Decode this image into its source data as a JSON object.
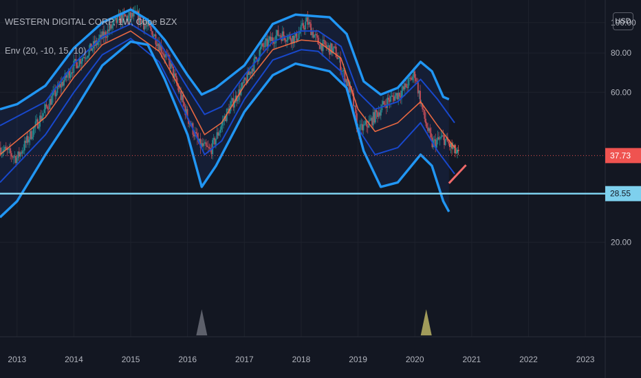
{
  "header": {
    "symbol": "WESTERN DIGITAL CORP, 1W, Cboe BZX",
    "indicator": "Env (20, -10, 15, 10)",
    "currency_button": "USD"
  },
  "colors": {
    "background": "#131722",
    "grid": "#1e222d",
    "envelope_outer": "#2196f3",
    "envelope_inner": "#1848cc",
    "ma_line": "#ff7043",
    "price_line": "#ef5350",
    "support_line": "#7ed0ee",
    "candle_up": "#26a69a",
    "candle_down": "#ef5350",
    "marker_2016": "#5d606b",
    "marker_2020": "#a19b5a"
  },
  "chart_data": {
    "type": "line",
    "x_labels": [
      "2013",
      "2014",
      "2015",
      "2016",
      "2017",
      "2018",
      "2019",
      "2020",
      "2021",
      "2022",
      "2023"
    ],
    "y_ticks": [
      100,
      80,
      60,
      20
    ],
    "y_labels": [
      "100.00",
      "80.00",
      "60.00",
      "20.00"
    ],
    "price_label": "37.73",
    "price_value": 37.73,
    "support_label": "28.55",
    "support_value": 28.55,
    "series": [
      {
        "id": "outer_upper",
        "x": [
          2012.7,
          2013.0,
          2013.5,
          2014.0,
          2014.5,
          2015.0,
          2015.3,
          2015.6,
          2016.0,
          2016.25,
          2016.5,
          2017.0,
          2017.5,
          2017.9,
          2018.2,
          2018.5,
          2018.8,
          2019.1,
          2019.4,
          2019.7,
          2020.1,
          2020.3,
          2020.5,
          2020.6
        ],
        "y": [
          53,
          55,
          63,
          83,
          100,
          110,
          102,
          88,
          68,
          59,
          62,
          73,
          99,
          106,
          105,
          104,
          92,
          65,
          59,
          62,
          75,
          70,
          58,
          57
        ]
      },
      {
        "id": "outer_lower",
        "x": [
          2012.7,
          2013.0,
          2013.5,
          2014.0,
          2014.5,
          2015.0,
          2015.3,
          2015.6,
          2016.0,
          2016.25,
          2016.5,
          2017.0,
          2017.5,
          2017.9,
          2018.2,
          2018.5,
          2018.8,
          2019.1,
          2019.4,
          2019.7,
          2020.1,
          2020.3,
          2020.5,
          2020.6
        ],
        "y": [
          24,
          27,
          38,
          52,
          73,
          87,
          85,
          66,
          44,
          30,
          35,
          52,
          68,
          74,
          72,
          70,
          62,
          39,
          30,
          31,
          38,
          35,
          27,
          25
        ]
      },
      {
        "id": "inner_upper",
        "x": [
          2012.7,
          2013.5,
          2014.0,
          2014.5,
          2015.0,
          2015.5,
          2016.0,
          2016.3,
          2016.6,
          2017.0,
          2017.5,
          2018.0,
          2018.3,
          2018.7,
          2019.0,
          2019.3,
          2019.7,
          2020.1,
          2020.4,
          2020.7
        ],
        "y": [
          47,
          56,
          74,
          90,
          99,
          87,
          62,
          51,
          54,
          68,
          87,
          94,
          94,
          84,
          60,
          53,
          56,
          66,
          57,
          48
        ]
      },
      {
        "id": "inner_lower",
        "x": [
          2012.7,
          2013.5,
          2014.0,
          2014.5,
          2015.0,
          2015.5,
          2016.0,
          2016.3,
          2016.6,
          2017.0,
          2017.5,
          2018.0,
          2018.3,
          2018.7,
          2019.0,
          2019.3,
          2019.7,
          2020.1,
          2020.4,
          2020.7
        ],
        "y": [
          31,
          44,
          60,
          79,
          89,
          75,
          50,
          38,
          42,
          57,
          76,
          82,
          81,
          70,
          46,
          38,
          40,
          48,
          39,
          33
        ]
      },
      {
        "id": "ma",
        "x": [
          2012.7,
          2013.5,
          2014.0,
          2014.5,
          2015.0,
          2015.5,
          2016.0,
          2016.3,
          2016.6,
          2017.0,
          2017.5,
          2018.0,
          2018.3,
          2018.7,
          2019.0,
          2019.3,
          2019.7,
          2020.1,
          2020.4,
          2020.7
        ],
        "y": [
          38,
          50,
          67,
          85,
          94,
          81,
          56,
          44,
          48,
          63,
          82,
          88,
          87,
          77,
          53,
          45,
          48,
          56,
          47,
          40
        ]
      },
      {
        "id": "price",
        "x": [
          2012.7,
          2013.0,
          2013.3,
          2013.6,
          2014.0,
          2014.4,
          2014.8,
          2015.1,
          2015.4,
          2015.7,
          2016.0,
          2016.2,
          2016.4,
          2016.7,
          2017.0,
          2017.3,
          2017.6,
          2017.9,
          2018.1,
          2018.3,
          2018.6,
          2018.9,
          2019.0,
          2019.2,
          2019.5,
          2019.8,
          2020.0,
          2020.15,
          2020.3,
          2020.5,
          2020.75
        ],
        "y": [
          40,
          37,
          46,
          57,
          73,
          86,
          103,
          105,
          92,
          73,
          50,
          41,
          39,
          52,
          64,
          83,
          92,
          89,
          101,
          86,
          81,
          58,
          45,
          48,
          56,
          61,
          69,
          51,
          41,
          43,
          38
        ]
      }
    ],
    "markers": [
      {
        "x": 2016.25,
        "label": "",
        "color": "#5d606b"
      },
      {
        "x": 2020.2,
        "label": "",
        "color": "#a19b5a"
      }
    ],
    "x_range": [
      2012.7,
      2023.35
    ],
    "y_range": [
      10,
      118
    ],
    "log_scale": true
  }
}
